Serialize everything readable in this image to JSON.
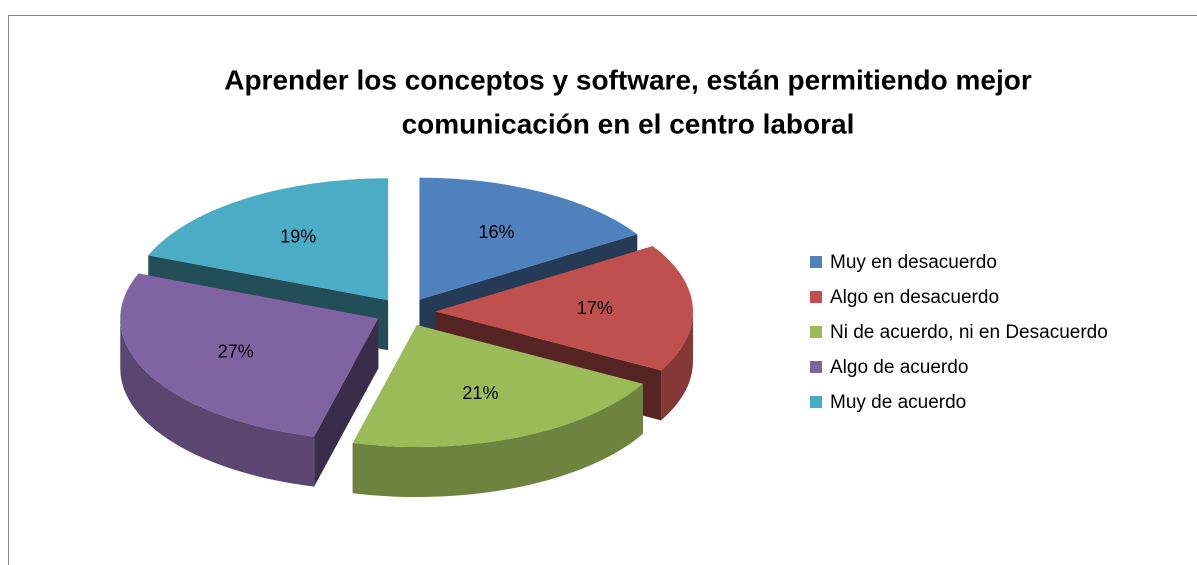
{
  "chart_data": {
    "type": "pie3d",
    "title": [
      "Aprender los conceptos y software, están permitiendo mejor",
      "comunicación en el centro laboral"
    ],
    "categories": [
      "Muy en desacuerdo",
      "Algo en desacuerdo",
      "Ni de acuerdo, ni en Desacuerdo",
      "Algo de acuerdo",
      "Muy de acuerdo"
    ],
    "values": [
      16,
      17,
      21,
      27,
      19
    ],
    "value_labels": [
      "16%",
      "17%",
      "21%",
      "27%",
      "19%"
    ],
    "colors": [
      "#4f81bd",
      "#c0504d",
      "#9bbb59",
      "#8064a2",
      "#4bacc6"
    ],
    "legend": "right"
  }
}
